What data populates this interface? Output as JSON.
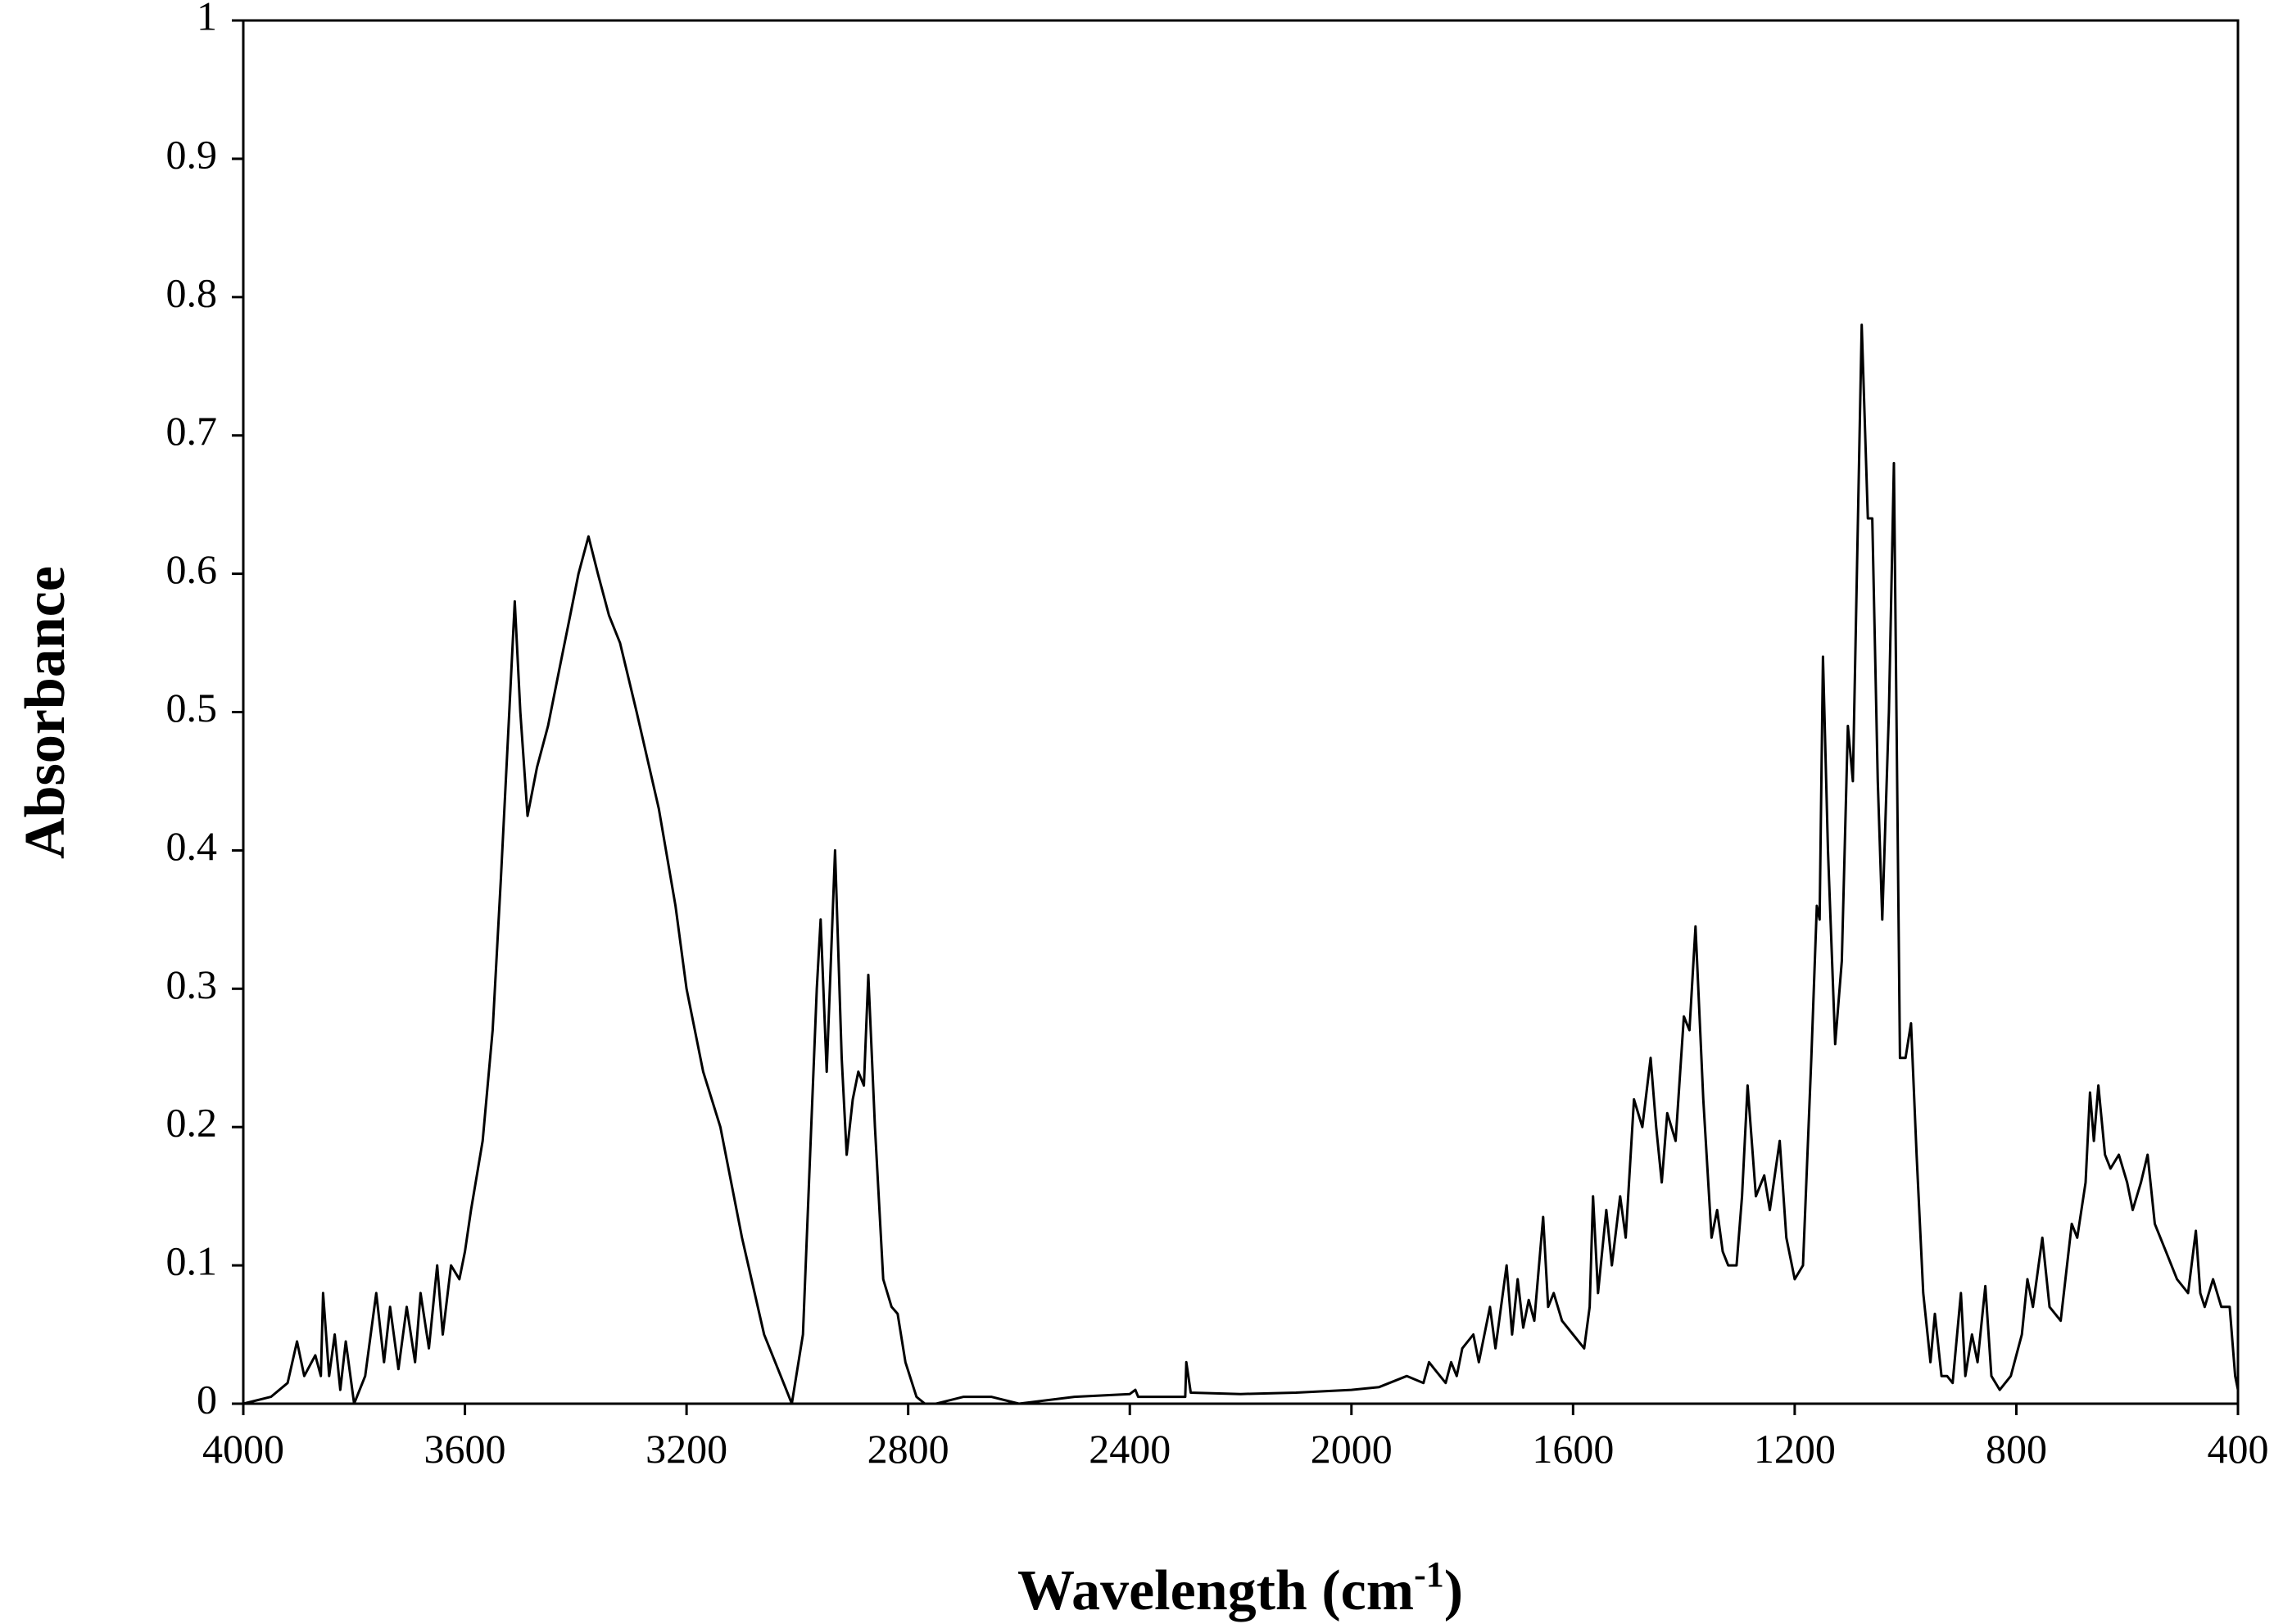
{
  "chart_data": {
    "type": "line",
    "ylabel": "Absorbance",
    "xlabel": "Wavelength  (cm",
    "xlabel_sup": "-1",
    "xlabel_end": ")",
    "color": "#000000",
    "xlim": [
      4000,
      400
    ],
    "ylim": [
      0,
      1
    ],
    "xticks": [
      4000,
      3600,
      3200,
      2800,
      2400,
      2000,
      1600,
      1200,
      800,
      400
    ],
    "yticks": [
      0,
      0.1,
      0.2,
      0.3,
      0.4,
      0.5,
      0.6,
      0.7,
      0.8,
      0.9,
      1
    ],
    "x": [
      4000,
      3950,
      3920,
      3903,
      3890,
      3870,
      3860,
      3856,
      3845,
      3835,
      3825,
      3815,
      3800,
      3780,
      3760,
      3746,
      3735,
      3720,
      3705,
      3690,
      3680,
      3665,
      3650,
      3640,
      3625,
      3610,
      3600,
      3589,
      3568,
      3550,
      3535,
      3520,
      3510,
      3500,
      3487,
      3470,
      3450,
      3430,
      3410,
      3395,
      3377,
      3360,
      3340,
      3320,
      3290,
      3250,
      3220,
      3200,
      3170,
      3139,
      3100,
      3060,
      3020,
      3010,
      2990,
      2975,
      2965,
      2958,
      2947,
      2932,
      2920,
      2911,
      2900,
      2890,
      2880,
      2872,
      2860,
      2845,
      2830,
      2819,
      2805,
      2785,
      2770,
      2750,
      2700,
      2650,
      2600,
      2500,
      2400,
      2390,
      2385,
      2300,
      2298,
      2290,
      2200,
      2100,
      2000,
      1950,
      1900,
      1870,
      1860,
      1850,
      1830,
      1820,
      1810,
      1800,
      1780,
      1770,
      1750,
      1740,
      1720,
      1710,
      1700,
      1690,
      1680,
      1670,
      1654,
      1645,
      1635,
      1620,
      1600,
      1580,
      1570,
      1564,
      1555,
      1540,
      1530,
      1515,
      1505,
      1490,
      1475,
      1460,
      1450,
      1440,
      1430,
      1415,
      1400,
      1390,
      1379,
      1365,
      1350,
      1340,
      1330,
      1320,
      1305,
      1295,
      1285,
      1270,
      1255,
      1245,
      1227,
      1215,
      1200,
      1185,
      1170,
      1160,
      1155,
      1149,
      1140,
      1127,
      1115,
      1104,
      1095,
      1079,
      1068,
      1060,
      1050,
      1042,
      1030,
      1021,
      1010,
      1000,
      990,
      980,
      968,
      955,
      947,
      935,
      925,
      915,
      900,
      892,
      880,
      870,
      856,
      845,
      830,
      810,
      790,
      780,
      770,
      753,
      740,
      720,
      700,
      690,
      675,
      667,
      660,
      652,
      640,
      630,
      615,
      600,
      590,
      575,
      563,
      550,
      530,
      510,
      490,
      476,
      468,
      460,
      445,
      430,
      415,
      405,
      400
    ],
    "values": [
      0,
      0.005,
      0.015,
      0.045,
      0.02,
      0.035,
      0.02,
      0.08,
      0.02,
      0.05,
      0.01,
      0.045,
      0,
      0.02,
      0.08,
      0.03,
      0.07,
      0.025,
      0.07,
      0.03,
      0.08,
      0.04,
      0.1,
      0.05,
      0.1,
      0.09,
      0.11,
      0.14,
      0.19,
      0.27,
      0.38,
      0.5,
      0.58,
      0.5,
      0.425,
      0.46,
      0.49,
      0.53,
      0.57,
      0.6,
      0.627,
      0.6,
      0.57,
      0.55,
      0.5,
      0.43,
      0.36,
      0.3,
      0.24,
      0.2,
      0.12,
      0.05,
      0.01,
      0,
      0.05,
      0.2,
      0.3,
      0.35,
      0.24,
      0.4,
      0.25,
      0.18,
      0.22,
      0.24,
      0.23,
      0.31,
      0.2,
      0.09,
      0.07,
      0.065,
      0.03,
      0.005,
      0,
      0,
      0.005,
      0.005,
      0,
      0.005,
      0.007,
      0.01,
      0.005,
      0.005,
      0.03,
      0.008,
      0.007,
      0.008,
      0.01,
      0.012,
      0.02,
      0.015,
      0.03,
      0.025,
      0.015,
      0.03,
      0.02,
      0.04,
      0.05,
      0.03,
      0.07,
      0.04,
      0.1,
      0.05,
      0.09,
      0.055,
      0.075,
      0.06,
      0.135,
      0.07,
      0.08,
      0.06,
      0.05,
      0.04,
      0.07,
      0.15,
      0.08,
      0.14,
      0.1,
      0.15,
      0.12,
      0.22,
      0.2,
      0.25,
      0.2,
      0.16,
      0.21,
      0.19,
      0.28,
      0.27,
      0.345,
      0.22,
      0.12,
      0.14,
      0.11,
      0.1,
      0.1,
      0.15,
      0.23,
      0.15,
      0.165,
      0.14,
      0.19,
      0.12,
      0.09,
      0.1,
      0.25,
      0.36,
      0.35,
      0.54,
      0.4,
      0.26,
      0.32,
      0.49,
      0.45,
      0.78,
      0.64,
      0.64,
      0.45,
      0.35,
      0.5,
      0.68,
      0.25,
      0.25,
      0.275,
      0.18,
      0.08,
      0.03,
      0.065,
      0.02,
      0.02,
      0.015,
      0.08,
      0.02,
      0.05,
      0.03,
      0.085,
      0.02,
      0.01,
      0.02,
      0.05,
      0.09,
      0.07,
      0.12,
      0.07,
      0.06,
      0.13,
      0.12,
      0.16,
      0.225,
      0.19,
      0.23,
      0.18,
      0.17,
      0.18,
      0.16,
      0.14,
      0.16,
      0.18,
      0.13,
      0.11,
      0.09,
      0.08,
      0.125,
      0.08,
      0.07,
      0.09,
      0.07,
      0.07,
      0.02,
      0.01
    ]
  }
}
